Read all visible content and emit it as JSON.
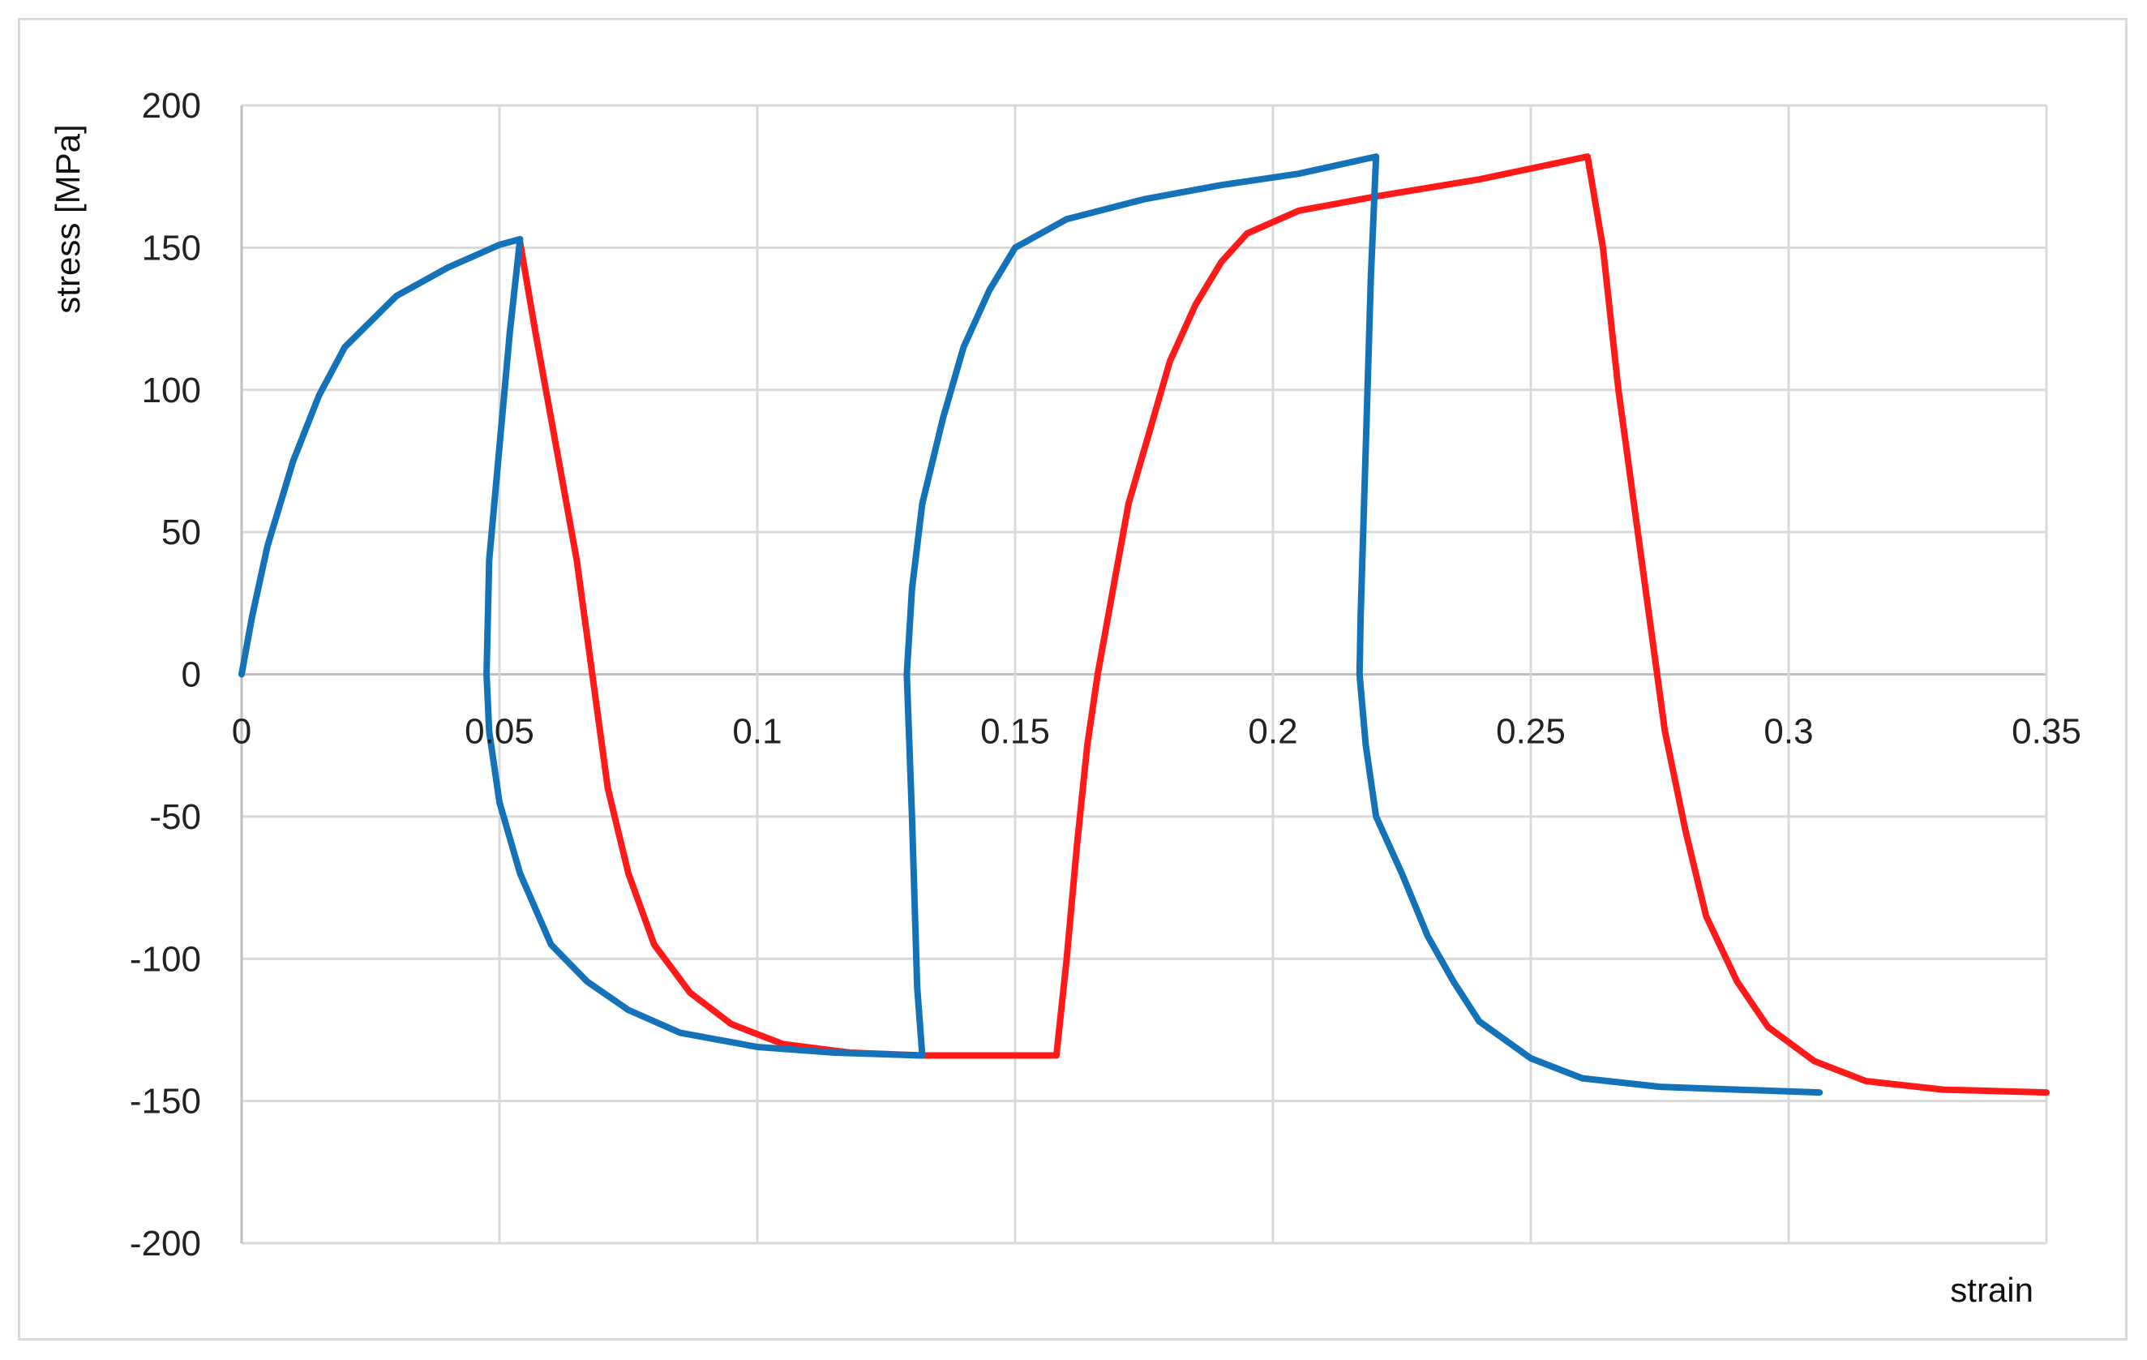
{
  "chart_data": {
    "type": "line",
    "title": "",
    "xlabel": "strain",
    "ylabel": "stress [MPa]",
    "xlim": [
      0,
      0.35
    ],
    "ylim": [
      -200,
      200
    ],
    "xticks": [
      0,
      0.05,
      0.1,
      0.15,
      0.2,
      0.25,
      0.3,
      0.35
    ],
    "xtick_labels": [
      "0",
      "0.05",
      "0.1",
      "0.15",
      "0.2",
      "0.25",
      "0.3",
      "0.35"
    ],
    "yticks": [
      200,
      150,
      100,
      50,
      0,
      -50,
      -100,
      -150,
      -200
    ],
    "ytick_labels": [
      "200",
      "150",
      "100",
      "50",
      "0",
      "-50",
      "-100",
      "-150",
      "-200"
    ],
    "grid": true,
    "legend": "none",
    "series": [
      {
        "color": "#ff1a1a",
        "points": [
          [
            0.054,
            152
          ],
          [
            0.057,
            120
          ],
          [
            0.061,
            80
          ],
          [
            0.065,
            40
          ],
          [
            0.068,
            0
          ],
          [
            0.071,
            -40
          ],
          [
            0.075,
            -70
          ],
          [
            0.08,
            -95
          ],
          [
            0.087,
            -112
          ],
          [
            0.095,
            -123
          ],
          [
            0.105,
            -130
          ],
          [
            0.118,
            -133
          ],
          [
            0.132,
            -134
          ],
          [
            0.15,
            -134
          ],
          [
            0.158,
            -134
          ],
          [
            0.16,
            -100
          ],
          [
            0.162,
            -60
          ],
          [
            0.164,
            -25
          ],
          [
            0.166,
            0
          ],
          [
            0.169,
            30
          ],
          [
            0.172,
            60
          ],
          [
            0.176,
            85
          ],
          [
            0.18,
            110
          ],
          [
            0.185,
            130
          ],
          [
            0.19,
            145
          ],
          [
            0.195,
            155
          ],
          [
            0.205,
            163
          ],
          [
            0.22,
            168
          ],
          [
            0.24,
            174
          ],
          [
            0.261,
            182
          ],
          [
            0.264,
            150
          ],
          [
            0.267,
            100
          ],
          [
            0.27,
            60
          ],
          [
            0.273,
            20
          ],
          [
            0.276,
            -20
          ],
          [
            0.28,
            -55
          ],
          [
            0.284,
            -85
          ],
          [
            0.29,
            -108
          ],
          [
            0.296,
            -124
          ],
          [
            0.305,
            -136
          ],
          [
            0.315,
            -143
          ],
          [
            0.33,
            -146
          ],
          [
            0.35,
            -147
          ]
        ]
      },
      {
        "color": "#1473b8",
        "points": [
          [
            0,
            0
          ],
          [
            0.002,
            20
          ],
          [
            0.005,
            45
          ],
          [
            0.01,
            75
          ],
          [
            0.015,
            98
          ],
          [
            0.02,
            115
          ],
          [
            0.03,
            133
          ],
          [
            0.04,
            143
          ],
          [
            0.05,
            151
          ],
          [
            0.054,
            153
          ],
          [
            0.052,
            120
          ],
          [
            0.05,
            80
          ],
          [
            0.048,
            40
          ],
          [
            0.0475,
            0
          ],
          [
            0.048,
            -20
          ],
          [
            0.05,
            -45
          ],
          [
            0.054,
            -70
          ],
          [
            0.06,
            -95
          ],
          [
            0.067,
            -108
          ],
          [
            0.075,
            -118
          ],
          [
            0.085,
            -126
          ],
          [
            0.1,
            -131
          ],
          [
            0.115,
            -133
          ],
          [
            0.132,
            -134
          ],
          [
            0.131,
            -110
          ],
          [
            0.13,
            -50
          ],
          [
            0.129,
            0
          ],
          [
            0.13,
            30
          ],
          [
            0.132,
            60
          ],
          [
            0.136,
            90
          ],
          [
            0.14,
            115
          ],
          [
            0.145,
            135
          ],
          [
            0.15,
            150
          ],
          [
            0.16,
            160
          ],
          [
            0.175,
            167
          ],
          [
            0.19,
            172
          ],
          [
            0.205,
            176
          ],
          [
            0.22,
            182
          ],
          [
            0.219,
            140
          ],
          [
            0.218,
            80
          ],
          [
            0.217,
            20
          ],
          [
            0.2168,
            0
          ],
          [
            0.218,
            -25
          ],
          [
            0.22,
            -50
          ],
          [
            0.225,
            -70
          ],
          [
            0.23,
            -92
          ],
          [
            0.235,
            -108
          ],
          [
            0.24,
            -122
          ],
          [
            0.25,
            -135
          ],
          [
            0.26,
            -142
          ],
          [
            0.275,
            -145
          ],
          [
            0.29,
            -146
          ],
          [
            0.306,
            -147
          ]
        ]
      }
    ]
  }
}
